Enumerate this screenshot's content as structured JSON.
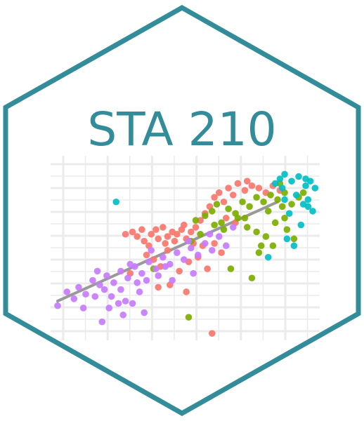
{
  "sticker": {
    "title": "STA 210",
    "border_color": "#338c99",
    "title_color": "#338c99",
    "grid_color": "#ebebeb",
    "trend_color": "#999999",
    "group_colors": [
      "#f8766d",
      "#7cae00",
      "#00bfc4",
      "#c77cff"
    ]
  },
  "chart_data": {
    "type": "scatter",
    "title": "",
    "xlabel": "",
    "ylabel": "",
    "grid": true,
    "legend": "none",
    "xlim": [
      0,
      11.5
    ],
    "ylim": [
      0,
      8
    ],
    "trend_line": {
      "x": [
        0.3,
        9.7
      ],
      "y": [
        1.7,
        6.0
      ]
    },
    "series": [
      {
        "color": "#f8766d",
        "points": [
          [
            3.2,
            4.6
          ],
          [
            3.5,
            4.7
          ],
          [
            3.7,
            4.5
          ],
          [
            3.9,
            4.8
          ],
          [
            4.0,
            4.3
          ],
          [
            4.3,
            4.6
          ],
          [
            4.5,
            4.8
          ],
          [
            4.6,
            4.4
          ],
          [
            4.8,
            4.9
          ],
          [
            5.0,
            4.5
          ],
          [
            5.2,
            4.7
          ],
          [
            5.4,
            4.6
          ],
          [
            5.6,
            4.8
          ],
          [
            5.8,
            4.4
          ],
          [
            6.0,
            4.7
          ],
          [
            6.2,
            4.9
          ],
          [
            6.4,
            5.2
          ],
          [
            6.6,
            5.5
          ],
          [
            6.8,
            5.8
          ],
          [
            7.0,
            6.2
          ],
          [
            7.2,
            6.4
          ],
          [
            7.4,
            6.0
          ],
          [
            7.6,
            6.6
          ],
          [
            7.8,
            6.3
          ],
          [
            8.0,
            6.8
          ],
          [
            8.3,
            6.5
          ],
          [
            8.6,
            6.7
          ],
          [
            8.9,
            6.6
          ],
          [
            9.2,
            6.4
          ],
          [
            9.5,
            6.7
          ],
          [
            9.8,
            6.5
          ],
          [
            4.1,
            3.7
          ],
          [
            4.4,
            3.5
          ],
          [
            4.7,
            3.2
          ],
          [
            5.0,
            3.9
          ],
          [
            5.5,
            3.0
          ],
          [
            5.9,
            3.4
          ],
          [
            6.3,
            3.6
          ],
          [
            6.7,
            3.1
          ],
          [
            7.0,
            4.2
          ],
          [
            7.3,
            3.8
          ],
          [
            5.1,
            2.4
          ],
          [
            5.8,
            2.1
          ],
          [
            4.6,
            2.3
          ],
          [
            6.9,
            0.3
          ],
          [
            5.3,
            4.3
          ],
          [
            6.5,
            4.1
          ],
          [
            7.5,
            5.3
          ],
          [
            3.4,
            2.9
          ],
          [
            4.9,
            4.2
          ],
          [
            5.7,
            5.0
          ],
          [
            6.1,
            4.2
          ],
          [
            7.9,
            5.1
          ],
          [
            8.4,
            6.9
          ],
          [
            4.2,
            4.1
          ]
        ]
      },
      {
        "color": "#7cae00",
        "points": [
          [
            6.2,
            5.2
          ],
          [
            6.6,
            5.4
          ],
          [
            6.9,
            5.6
          ],
          [
            7.1,
            5.9
          ],
          [
            7.3,
            5.1
          ],
          [
            7.6,
            5.7
          ],
          [
            7.9,
            5.5
          ],
          [
            8.2,
            6.0
          ],
          [
            8.5,
            5.8
          ],
          [
            8.8,
            6.2
          ],
          [
            9.1,
            6.0
          ],
          [
            9.4,
            6.3
          ],
          [
            9.7,
            6.1
          ],
          [
            10.0,
            6.4
          ],
          [
            10.3,
            5.9
          ],
          [
            10.6,
            6.2
          ],
          [
            8.4,
            4.9
          ],
          [
            8.8,
            4.7
          ],
          [
            9.2,
            4.5
          ],
          [
            9.6,
            5.1
          ],
          [
            10.0,
            5.3
          ],
          [
            10.4,
            4.4
          ],
          [
            9.0,
            4.1
          ],
          [
            7.7,
            3.1
          ],
          [
            8.6,
            2.7
          ],
          [
            4.4,
            3.1
          ],
          [
            6.0,
            4.3
          ],
          [
            5.9,
            1.0
          ],
          [
            9.8,
            6.8
          ],
          [
            8.0,
            5.3
          ],
          [
            7.4,
            4.8
          ],
          [
            9.3,
            5.6
          ],
          [
            10.1,
            4.8
          ],
          [
            8.9,
            3.8
          ],
          [
            9.5,
            4.1
          ],
          [
            10.8,
            6.4
          ],
          [
            6.4,
            4.6
          ],
          [
            8.3,
            5.3
          ],
          [
            7.0,
            5.0
          ],
          [
            9.9,
            5.8
          ]
        ]
      },
      {
        "color": "#00bfc4",
        "points": [
          [
            2.8,
            6.0
          ],
          [
            9.6,
            6.8
          ],
          [
            9.8,
            7.0
          ],
          [
            10.0,
            7.2
          ],
          [
            10.3,
            6.9
          ],
          [
            10.6,
            7.1
          ],
          [
            10.9,
            6.7
          ],
          [
            11.1,
            6.9
          ],
          [
            11.3,
            6.6
          ],
          [
            10.5,
            6.3
          ],
          [
            10.8,
            5.9
          ],
          [
            11.0,
            6.1
          ],
          [
            11.2,
            5.6
          ],
          [
            10.2,
            5.5
          ],
          [
            10.7,
            5.0
          ],
          [
            10.1,
            4.4
          ],
          [
            10.4,
            4.1
          ],
          [
            9.3,
            3.6
          ],
          [
            10.0,
            6.1
          ],
          [
            11.0,
            5.8
          ],
          [
            9.9,
            6.6
          ],
          [
            10.9,
            7.0
          ]
        ]
      },
      {
        "color": "#c77cff",
        "points": [
          [
            0.3,
            1.5
          ],
          [
            0.7,
            2.1
          ],
          [
            1.0,
            1.8
          ],
          [
            1.2,
            2.3
          ],
          [
            1.5,
            2.0
          ],
          [
            1.8,
            2.6
          ],
          [
            2.1,
            2.4
          ],
          [
            2.4,
            2.8
          ],
          [
            2.7,
            2.5
          ],
          [
            3.0,
            3.0
          ],
          [
            3.3,
            2.7
          ],
          [
            3.6,
            3.2
          ],
          [
            3.9,
            2.9
          ],
          [
            4.2,
            3.4
          ],
          [
            4.5,
            3.1
          ],
          [
            4.8,
            3.6
          ],
          [
            5.1,
            3.3
          ],
          [
            5.4,
            3.8
          ],
          [
            5.7,
            3.5
          ],
          [
            6.0,
            4.0
          ],
          [
            6.3,
            3.7
          ],
          [
            6.6,
            4.2
          ],
          [
            6.9,
            3.9
          ],
          [
            7.2,
            4.5
          ],
          [
            7.5,
            4.1
          ],
          [
            1.4,
            1.4
          ],
          [
            2.2,
            0.8
          ],
          [
            3.1,
            1.1
          ],
          [
            3.5,
            1.6
          ],
          [
            4.0,
            1.2
          ],
          [
            2.6,
            1.9
          ],
          [
            3.8,
            2.1
          ],
          [
            2.9,
            1.6
          ],
          [
            4.6,
            2.8
          ],
          [
            5.2,
            2.6
          ],
          [
            2.0,
            3.0
          ],
          [
            3.4,
            3.3
          ],
          [
            4.3,
            3.9
          ],
          [
            5.9,
            4.3
          ],
          [
            6.8,
            4.6
          ],
          [
            7.8,
            4.9
          ],
          [
            3.0,
            2.2
          ],
          [
            1.9,
            1.9
          ],
          [
            2.5,
            1.4
          ],
          [
            4.9,
            3.2
          ],
          [
            6.1,
            2.9
          ],
          [
            3.7,
            2.5
          ],
          [
            2.3,
            2.2
          ],
          [
            3.2,
            1.7
          ],
          [
            4.1,
            2.6
          ]
        ]
      }
    ]
  }
}
